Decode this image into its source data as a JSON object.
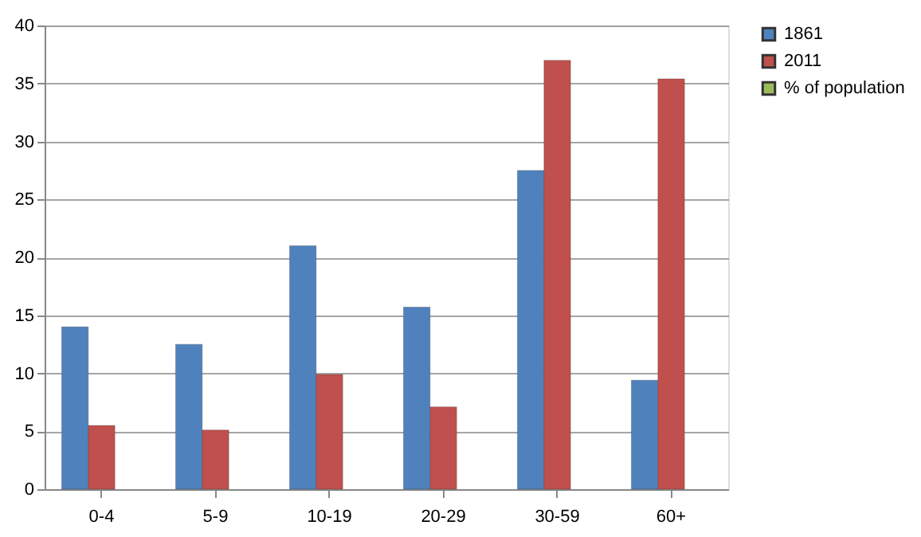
{
  "chart_data": {
    "type": "bar",
    "categories": [
      "0-4",
      "5-9",
      "10-19",
      "20-29",
      "30-59",
      "60+"
    ],
    "series": [
      {
        "name": "1861",
        "color": "#4f81bd",
        "values": [
          14.0,
          12.5,
          21.0,
          15.7,
          27.5,
          9.4
        ]
      },
      {
        "name": "2011",
        "color": "#c0504d",
        "values": [
          5.5,
          5.1,
          9.9,
          7.1,
          37.0,
          35.4
        ]
      },
      {
        "name": "% of population",
        "color": "#9bbb59",
        "values": [
          null,
          null,
          null,
          null,
          null,
          null
        ]
      }
    ],
    "ylim": [
      0,
      40
    ],
    "yticks": [
      0,
      5,
      10,
      15,
      20,
      25,
      30,
      35,
      40
    ],
    "grid": "y",
    "legend": "right"
  }
}
